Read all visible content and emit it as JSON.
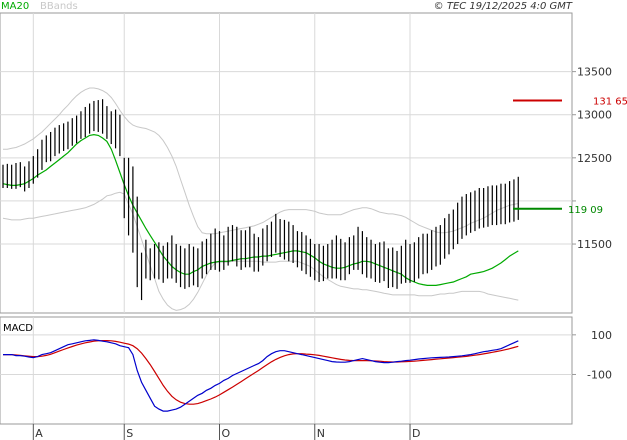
{
  "header": {
    "legend_ma": "MA20",
    "legend_bb": "BBands",
    "copyright": "© TEC 19/12/2025 4:0 GMT"
  },
  "colors": {
    "ma": "#00aa00",
    "bbands": "#c8c8c8",
    "price": "#000000",
    "resistance": "#cc0000",
    "support": "#008800",
    "macd": "#0000cc",
    "signal": "#cc0000",
    "grid": "#d9d9d9"
  },
  "chart_data": [
    {
      "type": "line",
      "title": "",
      "subtitle": "",
      "x_ticks": [
        "A",
        "S",
        "O",
        "N",
        "D"
      ],
      "x_tick_index": [
        7,
        28,
        50,
        72,
        94
      ],
      "y_ticks": [
        11500,
        12000,
        12500,
        13000,
        13500
      ],
      "y_tick_labels": [
        "11500",
        "",
        "12500",
        "13000",
        "13500"
      ],
      "ylim": [
        10700,
        14180
      ],
      "levels": [
        {
          "label": "131 65",
          "value": 13165,
          "color": "#cc0000"
        },
        {
          "label": "119 09",
          "value": 11909,
          "color": "#008800"
        }
      ],
      "series": [
        {
          "name": "MA20",
          "kind": "line",
          "values": [
            12200,
            12190,
            12180,
            12180,
            12190,
            12200,
            12230,
            12260,
            12300,
            12330,
            12360,
            12400,
            12440,
            12480,
            12520,
            12560,
            12610,
            12660,
            12700,
            12730,
            12760,
            12770,
            12760,
            12730,
            12690,
            12600,
            12470,
            12330,
            12190,
            12060,
            11950,
            11860,
            11770,
            11680,
            11600,
            11520,
            11440,
            11360,
            11300,
            11240,
            11200,
            11170,
            11150,
            11150,
            11180,
            11200,
            11240,
            11260,
            11280,
            11290,
            11300,
            11300,
            11300,
            11310,
            11320,
            11330,
            11330,
            11340,
            11350,
            11350,
            11360,
            11360,
            11370,
            11380,
            11390,
            11400,
            11410,
            11420,
            11420,
            11410,
            11400,
            11370,
            11340,
            11300,
            11270,
            11250,
            11230,
            11220,
            11220,
            11230,
            11250,
            11270,
            11280,
            11300,
            11300,
            11290,
            11270,
            11250,
            11230,
            11210,
            11190,
            11170,
            11150,
            11110,
            11080,
            11060,
            11040,
            11030,
            11020,
            11020,
            11020,
            11030,
            11040,
            11050,
            11060,
            11080,
            11100,
            11120,
            11150,
            11160,
            11170,
            11180,
            11200,
            11220,
            11250,
            11280,
            11320,
            11360,
            11390,
            11420
          ]
        },
        {
          "name": "BBands",
          "kind": "line",
          "values": [
            12600,
            12600,
            12610,
            12620,
            12640,
            12660,
            12690,
            12720,
            12760,
            12800,
            12850,
            12900,
            12950,
            13000,
            13060,
            13110,
            13170,
            13220,
            13260,
            13290,
            13310,
            13310,
            13300,
            13280,
            13250,
            13200,
            13130,
            13050,
            12980,
            12920,
            12880,
            12860,
            12850,
            12840,
            12820,
            12800,
            12760,
            12700,
            12620,
            12520,
            12400,
            12250,
            12100,
            11950,
            11820,
            11700,
            11630,
            11620,
            11620,
            11620,
            11630,
            11640,
            11650,
            11660,
            11670,
            11680,
            11690,
            11700,
            11710,
            11730,
            11750,
            11780,
            11810,
            11840,
            11870,
            11890,
            11900,
            11900,
            11900,
            11900,
            11900,
            11890,
            11880,
            11860,
            11850,
            11840,
            11840,
            11840,
            11840,
            11860,
            11880,
            11900,
            11910,
            11920,
            11920,
            11910,
            11890,
            11870,
            11860,
            11850,
            11850,
            11840,
            11830,
            11810,
            11780,
            11750,
            11720,
            11700,
            11680,
            11660,
            11640,
            11630,
            11630,
            11640,
            11650,
            11670,
            11690,
            11710,
            11740,
            11760,
            11780,
            11800,
            11830,
            11860,
            11890,
            11910,
            11930,
            11950,
            11960,
            11970
          ]
        },
        {
          "name": "BBands",
          "kind": "line",
          "values": [
            11800,
            11790,
            11780,
            11780,
            11780,
            11790,
            11800,
            11800,
            11810,
            11820,
            11830,
            11840,
            11850,
            11860,
            11870,
            11880,
            11890,
            11900,
            11910,
            11920,
            11940,
            11960,
            11990,
            12020,
            12060,
            12070,
            12090,
            12100,
            12080,
            11960,
            11850,
            11700,
            11550,
            11400,
            11250,
            11100,
            10950,
            10860,
            10790,
            10750,
            10730,
            10740,
            10760,
            10800,
            10860,
            10940,
            11040,
            11140,
            11220,
            11280,
            11290,
            11290,
            11290,
            11300,
            11300,
            11300,
            11300,
            11300,
            11300,
            11300,
            11290,
            11290,
            11290,
            11290,
            11300,
            11300,
            11300,
            11300,
            11300,
            11280,
            11260,
            11240,
            11200,
            11160,
            11120,
            11090,
            11060,
            11030,
            11010,
            11000,
            10990,
            10980,
            10980,
            10970,
            10970,
            10960,
            10950,
            10940,
            10930,
            10920,
            10910,
            10910,
            10910,
            10910,
            10910,
            10910,
            10900,
            10900,
            10900,
            10900,
            10910,
            10920,
            10920,
            10930,
            10930,
            10940,
            10950,
            10950,
            10950,
            10950,
            10950,
            10940,
            10920,
            10910,
            10900,
            10890,
            10880,
            10870,
            10860,
            10850
          ]
        },
        {
          "name": "Price",
          "kind": "bars",
          "high": [
            12420,
            12430,
            12420,
            12440,
            12450,
            12400,
            12460,
            12520,
            12600,
            12710,
            12760,
            12800,
            12850,
            12880,
            12900,
            12920,
            12960,
            12990,
            13040,
            13090,
            13130,
            13160,
            13170,
            13180,
            13100,
            13040,
            13060,
            13000,
            12500,
            12500,
            12400,
            12050,
            11400,
            11550,
            11450,
            11500,
            11520,
            11480,
            11520,
            11600,
            11500,
            11480,
            11450,
            11500,
            11470,
            11450,
            11530,
            11560,
            11620,
            11680,
            11650,
            11600,
            11700,
            11720,
            11700,
            11660,
            11660,
            11700,
            11620,
            11580,
            11680,
            11720,
            11760,
            11850,
            11790,
            11780,
            11760,
            11720,
            11650,
            11640,
            11600,
            11560,
            11500,
            11500,
            11480,
            11500,
            11550,
            11600,
            11560,
            11520,
            11580,
            11600,
            11700,
            11650,
            11580,
            11550,
            11500,
            11520,
            11530,
            11450,
            11460,
            11420,
            11480,
            11550,
            11500,
            11520,
            11580,
            11620,
            11620,
            11660,
            11700,
            11720,
            11800,
            11850,
            11900,
            11980,
            12050,
            12080,
            12100,
            12120,
            12150,
            12150,
            12170,
            12180,
            12180,
            12200,
            12200,
            12230,
            12250,
            12280
          ],
          "low": [
            12150,
            12150,
            12140,
            12140,
            12160,
            12110,
            12150,
            12200,
            12270,
            12360,
            12450,
            12460,
            12520,
            12550,
            12580,
            12600,
            12640,
            12670,
            12720,
            12740,
            12780,
            12810,
            12800,
            12780,
            12720,
            12660,
            12610,
            12520,
            11800,
            11600,
            11400,
            11000,
            10850,
            11100,
            11080,
            11100,
            11090,
            11050,
            11100,
            11100,
            11050,
            11000,
            10980,
            11000,
            11020,
            11000,
            11100,
            11150,
            11200,
            11200,
            11180,
            11200,
            11250,
            11300,
            11240,
            11200,
            11230,
            11230,
            11180,
            11180,
            11250,
            11300,
            11350,
            11400,
            11350,
            11320,
            11300,
            11280,
            11230,
            11190,
            11150,
            11120,
            11080,
            11060,
            11070,
            11100,
            11100,
            11100,
            11080,
            11080,
            11150,
            11200,
            11200,
            11150,
            11110,
            11100,
            11060,
            11050,
            11070,
            10990,
            11000,
            10980,
            11040,
            11050,
            11050,
            11060,
            11100,
            11150,
            11160,
            11200,
            11240,
            11260,
            11330,
            11380,
            11440,
            11500,
            11560,
            11600,
            11630,
            11650,
            11680,
            11690,
            11700,
            11720,
            11720,
            11730,
            11730,
            11750,
            11760,
            11780
          ]
        }
      ]
    },
    {
      "type": "line",
      "title": "MACD",
      "y_ticks": [
        100,
        -100
      ],
      "y_tick_labels": [
        "100",
        "-100"
      ],
      "ylim": [
        -350,
        190
      ],
      "series": [
        {
          "name": "MACD",
          "kind": "line",
          "values": [
            0,
            0,
            0,
            -5,
            -5,
            -8,
            -12,
            -15,
            -10,
            0,
            5,
            10,
            20,
            30,
            40,
            50,
            55,
            60,
            65,
            70,
            72,
            75,
            72,
            68,
            65,
            60,
            55,
            45,
            40,
            35,
            0,
            -80,
            -140,
            -180,
            -220,
            -260,
            -275,
            -285,
            -285,
            -280,
            -275,
            -265,
            -250,
            -235,
            -220,
            -205,
            -195,
            -180,
            -170,
            -155,
            -145,
            -130,
            -120,
            -105,
            -95,
            -85,
            -75,
            -65,
            -55,
            -45,
            -30,
            -10,
            5,
            15,
            20,
            20,
            15,
            10,
            5,
            0,
            -5,
            -10,
            -15,
            -20,
            -25,
            -30,
            -35,
            -37,
            -38,
            -38,
            -35,
            -30,
            -25,
            -20,
            -25,
            -30,
            -35,
            -38,
            -40,
            -40,
            -38,
            -35,
            -33,
            -30,
            -28,
            -25,
            -22,
            -20,
            -18,
            -16,
            -15,
            -14,
            -13,
            -12,
            -10,
            -8,
            -6,
            -3,
            0,
            5,
            10,
            15,
            18,
            22,
            25,
            30,
            40,
            50,
            60,
            70
          ]
        },
        {
          "name": "Signal",
          "kind": "line",
          "values": [
            0,
            0,
            0,
            -2,
            -4,
            -6,
            -8,
            -10,
            -10,
            -8,
            -4,
            2,
            10,
            18,
            26,
            34,
            41,
            48,
            54,
            60,
            64,
            68,
            70,
            71,
            71,
            70,
            67,
            63,
            58,
            53,
            45,
            30,
            8,
            -20,
            -50,
            -85,
            -120,
            -155,
            -185,
            -210,
            -228,
            -240,
            -247,
            -250,
            -250,
            -247,
            -240,
            -232,
            -224,
            -214,
            -203,
            -190,
            -177,
            -164,
            -150,
            -136,
            -122,
            -108,
            -94,
            -80,
            -65,
            -50,
            -36,
            -24,
            -14,
            -6,
            0,
            4,
            5,
            5,
            3,
            1,
            -1,
            -4,
            -8,
            -12,
            -16,
            -20,
            -24,
            -27,
            -29,
            -30,
            -30,
            -30,
            -30,
            -31,
            -32,
            -33,
            -35,
            -36,
            -37,
            -37,
            -36,
            -35,
            -34,
            -33,
            -31,
            -29,
            -27,
            -25,
            -23,
            -21,
            -19,
            -17,
            -15,
            -13,
            -11,
            -9,
            -6,
            -3,
            0,
            4,
            8,
            12,
            16,
            20,
            25,
            30,
            36,
            42
          ]
        }
      ]
    }
  ]
}
